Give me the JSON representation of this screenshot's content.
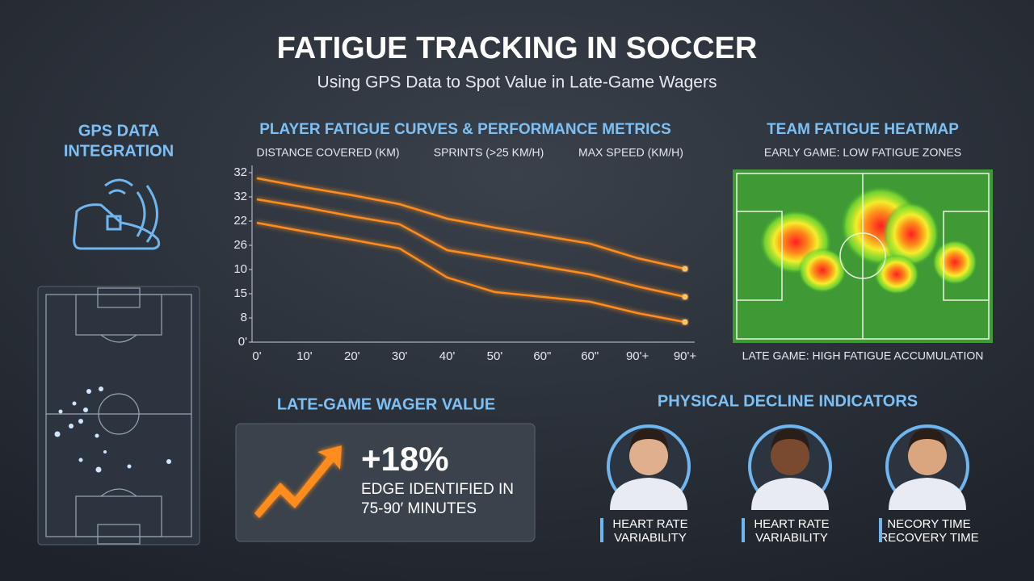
{
  "header": {
    "title": "FATIGUE TRACKING IN SOCCER",
    "subtitle": "Using GPS Data to Spot Value in Late-Game Wagers"
  },
  "gps": {
    "title_lines": [
      "GPS DATA",
      "INTEGRATION"
    ]
  },
  "chart_data": {
    "type": "line",
    "title": "PLAYER FATIGUE CURVES & PERFORMANCE METRICS",
    "categories": [
      "0'",
      "10'",
      "20'",
      "30'",
      "40'",
      "50'",
      "60\"",
      "60\"",
      "90'+",
      "90'+"
    ],
    "series": [
      {
        "name": "DISTANCE COVERED (KM)",
        "color": "#ff8c1a",
        "values": [
          6.77,
          6.4,
          6.07,
          5.7,
          5.1,
          4.73,
          4.4,
          4.07,
          3.47,
          3.03
        ]
      },
      {
        "name": "SPRINTS (>25 KM/H)",
        "color": "#ff8c1a",
        "values": [
          5.9,
          5.57,
          5.2,
          4.87,
          3.8,
          3.47,
          3.13,
          2.8,
          2.3,
          1.87
        ]
      },
      {
        "name": "MAX SPEED (KM/H)",
        "color": "#ff8c1a",
        "values": [
          4.93,
          4.57,
          4.23,
          3.87,
          2.67,
          2.07,
          1.87,
          1.67,
          1.2,
          0.83
        ]
      }
    ],
    "ylim": [
      0,
      7
    ],
    "yticks": [
      {
        "value": 0,
        "label": "0'"
      },
      {
        "value": 1,
        "label": "8"
      },
      {
        "value": 2,
        "label": "15"
      },
      {
        "value": 3,
        "label": "10"
      },
      {
        "value": 4,
        "label": "26"
      },
      {
        "value": 5,
        "label": "22"
      },
      {
        "value": 6,
        "label": "32"
      },
      {
        "value": 7,
        "label": "32"
      }
    ]
  },
  "heatmap": {
    "title": "TEAM FATIGUE HEATMAP",
    "top_label": "EARLY GAME: LOW FATIGUE ZONES",
    "bottom_label": "LATE GAME: HIGH FATIGUE ACCUMULATION"
  },
  "wager": {
    "title": "LATE-GAME WAGER VALUE",
    "value_text": "+18%",
    "caption_lines": [
      "EDGE IDENTIFIED IN",
      "75-90′ MINUTES"
    ]
  },
  "decline": {
    "title": "PHYSICAL DECLINE INDICATORS",
    "players": [
      {
        "lines": [
          "HEART RATE",
          "VARIABILITY"
        ]
      },
      {
        "lines": [
          "HEART RATE",
          "VARIABILITY"
        ]
      },
      {
        "lines": [
          "NECORY TIME",
          "RECOVERY TIME"
        ]
      }
    ]
  }
}
